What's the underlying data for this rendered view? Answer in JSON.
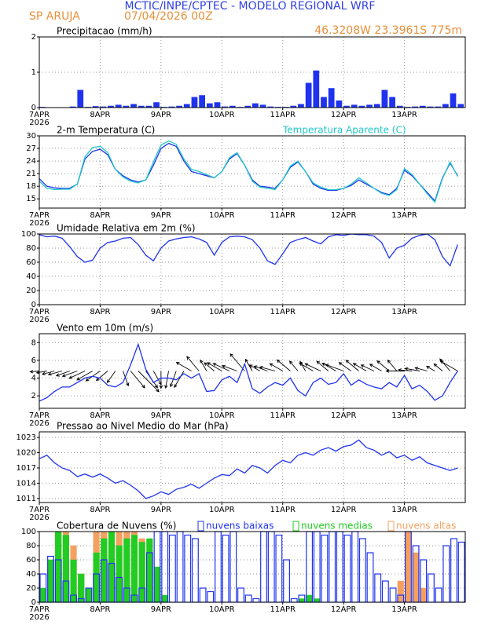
{
  "header": {
    "title": "MCTIC/INPE/CPTEC - MODELO REGIONAL WRF",
    "location": "SP ARUJA",
    "run": "07/04/2026 00Z",
    "coords": "46.3208W 23.3961S 775m"
  },
  "chart_data": [
    {
      "type": "bar",
      "title": "Precipitacao (mm/h)",
      "color": "#1f33ee",
      "grid": true,
      "x": [
        0,
        3,
        6,
        9,
        12,
        15,
        18,
        21,
        24,
        27,
        30,
        33,
        36,
        39,
        42,
        45,
        48,
        51,
        54,
        57,
        60,
        63,
        66,
        69,
        72,
        75,
        78,
        81,
        84,
        87,
        90,
        93,
        96,
        99,
        102,
        105,
        108,
        111,
        114,
        117,
        120,
        123,
        126,
        129,
        132,
        135,
        138,
        141,
        144,
        147,
        150,
        153,
        156,
        159,
        162,
        165
      ],
      "values": [
        0.02,
        0.01,
        0.01,
        0.01,
        0.03,
        0.5,
        0.02,
        0.04,
        0.03,
        0.05,
        0.08,
        0.05,
        0.1,
        0.05,
        0.05,
        0.15,
        0.02,
        0.03,
        0.05,
        0.1,
        0.3,
        0.35,
        0.12,
        0.15,
        0.03,
        0.05,
        0.02,
        0.05,
        0.12,
        0.08,
        0.03,
        0.02,
        0.02,
        0.05,
        0.1,
        0.7,
        1.05,
        0.3,
        0.55,
        0.2,
        0.05,
        0.08,
        0.05,
        0.08,
        0.1,
        0.5,
        0.3,
        0.05,
        0.02,
        0.03,
        0.05,
        0.03,
        0.03,
        0.1,
        0.4,
        0.1
      ],
      "xlim": [
        0,
        168
      ],
      "xticks": [
        {
          "value": 0,
          "label": "7APR"
        },
        {
          "value": 24,
          "label": "8APR"
        },
        {
          "value": 48,
          "label": "9APR"
        },
        {
          "value": 72,
          "label": "10APR"
        },
        {
          "value": 96,
          "label": "11APR"
        },
        {
          "value": 120,
          "label": "12APR"
        },
        {
          "value": 144,
          "label": "13APR"
        }
      ],
      "year_label": "2026",
      "ylim": [
        0,
        2
      ],
      "yticks": [
        0,
        1,
        2
      ]
    },
    {
      "type": "line",
      "grid": true,
      "x": [
        0,
        3,
        6,
        9,
        12,
        15,
        18,
        21,
        24,
        27,
        30,
        33,
        36,
        39,
        42,
        45,
        48,
        51,
        54,
        57,
        60,
        63,
        66,
        69,
        72,
        75,
        78,
        81,
        84,
        87,
        90,
        93,
        96,
        99,
        102,
        105,
        108,
        111,
        114,
        117,
        120,
        123,
        126,
        129,
        132,
        135,
        138,
        141,
        144,
        147,
        150,
        153,
        156,
        159,
        162,
        165
      ],
      "series": [
        {
          "name": "2-m Temperatura (C)",
          "color": "#1f33ee",
          "values": [
            19.8,
            18,
            17.6,
            17.5,
            17.5,
            18.5,
            24.5,
            26.3,
            26.8,
            25.5,
            22,
            20.5,
            19.5,
            19,
            19.5,
            23,
            27,
            28.2,
            27.5,
            24,
            21.5,
            21,
            20.5,
            20,
            21.5,
            24.5,
            25.8,
            23,
            19.5,
            18,
            17.8,
            17.5,
            19.5,
            22.5,
            23.8,
            21.5,
            18.5,
            17.5,
            17,
            17,
            17.5,
            18.2,
            19.5,
            18.5,
            17.5,
            16.5,
            16,
            17.5,
            21.8,
            20.5,
            18.5,
            16.5,
            14.5,
            20,
            23.5,
            20.5
          ]
        },
        {
          "name": "Temperatura Aparente (C)",
          "color": "#22c8c8",
          "values": [
            19.2,
            17.5,
            17.2,
            17.3,
            17.3,
            18.5,
            25,
            27.2,
            27.5,
            26,
            22,
            20.2,
            19.2,
            18.8,
            19.5,
            23.8,
            27.8,
            28.8,
            28,
            24.5,
            22,
            21.5,
            20.8,
            20,
            21.5,
            24.8,
            26,
            23,
            19.2,
            17.8,
            17.5,
            17.2,
            19.5,
            22.8,
            24,
            21.5,
            18.8,
            17.8,
            17.2,
            17.2,
            17.5,
            18.5,
            20,
            18.8,
            17.5,
            16.3,
            15.8,
            17.2,
            22.2,
            20.8,
            18.5,
            16.2,
            14.2,
            19.8,
            23.8,
            20.3
          ]
        }
      ],
      "xlim": [
        0,
        168
      ],
      "xticks": [
        {
          "value": 0,
          "label": "7APR"
        },
        {
          "value": 24,
          "label": "8APR"
        },
        {
          "value": 48,
          "label": "9APR"
        },
        {
          "value": 72,
          "label": "10APR"
        },
        {
          "value": 96,
          "label": "11APR"
        },
        {
          "value": 120,
          "label": "12APR"
        },
        {
          "value": 144,
          "label": "13APR"
        }
      ],
      "year_label": "2026",
      "ylim": [
        12.8,
        30
      ],
      "yticks": [
        15,
        18,
        21,
        24,
        27,
        30
      ]
    },
    {
      "type": "line",
      "title": "Umidade Relativa em 2m (%)",
      "grid": true,
      "x": [
        0,
        3,
        6,
        9,
        12,
        15,
        18,
        21,
        24,
        27,
        30,
        33,
        36,
        39,
        42,
        45,
        48,
        51,
        54,
        57,
        60,
        63,
        66,
        69,
        72,
        75,
        78,
        81,
        84,
        87,
        90,
        93,
        96,
        99,
        102,
        105,
        108,
        111,
        114,
        117,
        120,
        123,
        126,
        129,
        132,
        135,
        138,
        141,
        144,
        147,
        150,
        153,
        156,
        159,
        162,
        165
      ],
      "series": [
        {
          "color": "#1f33ee",
          "values": [
            99,
            96,
            97,
            94,
            82,
            68,
            60,
            63,
            80,
            88,
            90,
            94,
            95,
            85,
            70,
            62,
            80,
            90,
            93,
            95,
            96,
            93,
            88,
            70,
            88,
            96,
            97,
            96,
            92,
            80,
            62,
            57,
            72,
            88,
            92,
            95,
            90,
            86,
            96,
            99,
            98,
            100,
            99,
            99,
            97,
            88,
            66,
            80,
            84,
            94,
            98,
            100,
            92,
            68,
            55,
            85
          ]
        }
      ],
      "xlim": [
        0,
        168
      ],
      "xticks": [
        {
          "value": 0,
          "label": "7APR"
        },
        {
          "value": 24,
          "label": "8APR"
        },
        {
          "value": 48,
          "label": "9APR"
        },
        {
          "value": 72,
          "label": "10APR"
        },
        {
          "value": 96,
          "label": "11APR"
        },
        {
          "value": 120,
          "label": "12APR"
        },
        {
          "value": 144,
          "label": "13APR"
        }
      ],
      "year_label": "2026",
      "ylim": [
        0,
        100
      ],
      "yticks": [
        0,
        20,
        40,
        60,
        80,
        100
      ]
    },
    {
      "type": "line",
      "title": "Vento em 10m (m/s)",
      "grid": true,
      "x": [
        0,
        3,
        6,
        9,
        12,
        15,
        18,
        21,
        24,
        27,
        30,
        33,
        36,
        39,
        42,
        45,
        48,
        51,
        54,
        57,
        60,
        63,
        66,
        69,
        72,
        75,
        78,
        81,
        84,
        87,
        90,
        93,
        96,
        99,
        102,
        105,
        108,
        111,
        114,
        117,
        120,
        123,
        126,
        129,
        132,
        135,
        138,
        141,
        144,
        147,
        150,
        153,
        156,
        159,
        162,
        165
      ],
      "series": [
        {
          "color": "#1f33ee",
          "values": [
            1.4,
            1.8,
            2.5,
            3,
            3,
            3.5,
            4,
            4.2,
            4,
            3.2,
            3,
            3.5,
            5.5,
            7.8,
            5,
            3.5,
            4,
            4,
            3.8,
            4.5,
            4,
            4.5,
            2.5,
            2.6,
            3.8,
            4.2,
            3.5,
            5.6,
            2.8,
            2.3,
            3,
            3.5,
            3.2,
            4,
            2.6,
            2,
            3.5,
            4,
            3.3,
            3.5,
            4.5,
            3.2,
            3.8,
            3.3,
            3,
            2.8,
            3.5,
            3,
            4.3,
            2.8,
            3.2,
            2.5,
            1.5,
            2,
            3.5,
            4.8
          ]
        }
      ],
      "directions": [
        265,
        260,
        255,
        255,
        250,
        250,
        245,
        240,
        235,
        230,
        215,
        160,
        140,
        135,
        145,
        150,
        180,
        190,
        200,
        210,
        300,
        320,
        330,
        310,
        300,
        295,
        290,
        320,
        330,
        300,
        290,
        285,
        300,
        310,
        320,
        330,
        300,
        295,
        310,
        300,
        290,
        305,
        310,
        300,
        295,
        300,
        310,
        320,
        270,
        275,
        280,
        285,
        300,
        310,
        320,
        300
      ],
      "xlim": [
        0,
        168
      ],
      "xticks": [
        {
          "value": 0,
          "label": "7APR"
        },
        {
          "value": 24,
          "label": "8APR"
        },
        {
          "value": 48,
          "label": "9APR"
        },
        {
          "value": 72,
          "label": "10APR"
        },
        {
          "value": 96,
          "label": "11APR"
        },
        {
          "value": 120,
          "label": "12APR"
        },
        {
          "value": 144,
          "label": "13APR"
        }
      ],
      "year_label": "2026",
      "ylim": [
        0.6,
        9
      ],
      "yticks": [
        2,
        4,
        6,
        8
      ]
    },
    {
      "type": "line",
      "title": "Pressao ao Nivel Medio do Mar (hPa)",
      "grid": true,
      "x": [
        0,
        3,
        6,
        9,
        12,
        15,
        18,
        21,
        24,
        27,
        30,
        33,
        36,
        39,
        42,
        45,
        48,
        51,
        54,
        57,
        60,
        63,
        66,
        69,
        72,
        75,
        78,
        81,
        84,
        87,
        90,
        93,
        96,
        99,
        102,
        105,
        108,
        111,
        114,
        117,
        120,
        123,
        126,
        129,
        132,
        135,
        138,
        141,
        144,
        147,
        150,
        153,
        156,
        159,
        162,
        165
      ],
      "series": [
        {
          "color": "#1f33ee",
          "values": [
            1018.8,
            1019.5,
            1018,
            1017,
            1016.5,
            1015.3,
            1015.8,
            1015.2,
            1015.8,
            1015,
            1014,
            1014.5,
            1013.6,
            1012.5,
            1011,
            1011.5,
            1012.3,
            1011.8,
            1012.8,
            1013.2,
            1013.8,
            1013,
            1014,
            1015,
            1015.7,
            1015.5,
            1016.8,
            1016,
            1017.5,
            1017,
            1016,
            1017.5,
            1018.5,
            1018,
            1019.5,
            1020,
            1019.5,
            1020.5,
            1021,
            1020.3,
            1021.2,
            1021.5,
            1022.5,
            1021,
            1020.5,
            1019.5,
            1020.2,
            1019,
            1019.5,
            1018.5,
            1019.2,
            1018,
            1017.5,
            1017,
            1016.5,
            1017
          ]
        }
      ],
      "xlim": [
        0,
        168
      ],
      "xticks": [
        {
          "value": 0,
          "label": "7APR"
        },
        {
          "value": 24,
          "label": "8APR"
        },
        {
          "value": 48,
          "label": "9APR"
        },
        {
          "value": 72,
          "label": "10APR"
        },
        {
          "value": 96,
          "label": "11APR"
        },
        {
          "value": 120,
          "label": "12APR"
        },
        {
          "value": 144,
          "label": "13APR"
        }
      ],
      "year_label": "2026",
      "ylim": [
        1010.2,
        1024.1
      ],
      "yticks": [
        1011,
        1014,
        1017,
        1020,
        1023
      ]
    },
    {
      "type": "bar",
      "title": "Cobertura de Nuvens (%)",
      "grid": true,
      "x": [
        0,
        3,
        6,
        9,
        12,
        15,
        18,
        21,
        24,
        27,
        30,
        33,
        36,
        39,
        42,
        45,
        48,
        51,
        54,
        57,
        60,
        63,
        66,
        69,
        72,
        75,
        78,
        81,
        84,
        87,
        90,
        93,
        96,
        99,
        102,
        105,
        108,
        111,
        114,
        117,
        120,
        123,
        126,
        129,
        132,
        135,
        138,
        141,
        144,
        147,
        150,
        153,
        156,
        159,
        162,
        165
      ],
      "series": [
        {
          "name": "nuvens baixas",
          "color": "#1f33ee",
          "outline": true,
          "values": [
            40,
            65,
            60,
            30,
            10,
            5,
            20,
            40,
            60,
            55,
            35,
            20,
            10,
            20,
            70,
            100,
            100,
            95,
            100,
            95,
            90,
            20,
            15,
            100,
            95,
            100,
            20,
            10,
            5,
            100,
            100,
            95,
            60,
            5,
            10,
            100,
            100,
            95,
            100,
            100,
            95,
            100,
            90,
            70,
            40,
            30,
            20,
            10,
            100,
            80,
            60,
            40,
            20,
            80,
            90,
            85
          ]
        },
        {
          "name": "nuvens medias",
          "color": "#22cc22",
          "outline": false,
          "values": [
            20,
            60,
            100,
            95,
            60,
            40,
            20,
            70,
            90,
            100,
            80,
            90,
            95,
            85,
            90,
            50,
            10,
            0,
            0,
            0,
            0,
            0,
            0,
            0,
            0,
            0,
            0,
            0,
            0,
            0,
            0,
            0,
            0,
            0,
            5,
            10,
            5,
            0,
            0,
            0,
            0,
            0,
            0,
            0,
            0,
            0,
            0,
            0,
            0,
            0,
            0,
            0,
            0,
            0,
            0,
            0
          ]
        },
        {
          "name": "nuvens altas",
          "color": "#f4a060",
          "outline": false,
          "values": [
            0,
            30,
            100,
            100,
            80,
            40,
            10,
            100,
            100,
            100,
            100,
            100,
            100,
            90,
            60,
            10,
            0,
            0,
            0,
            0,
            0,
            0,
            0,
            0,
            0,
            0,
            0,
            0,
            0,
            0,
            0,
            0,
            0,
            0,
            0,
            0,
            0,
            0,
            0,
            0,
            0,
            0,
            0,
            0,
            0,
            0,
            0,
            30,
            100,
            70,
            20,
            0,
            0,
            0,
            0,
            0
          ]
        }
      ],
      "xlim": [
        0,
        168
      ],
      "xticks": [
        {
          "value": 0,
          "label": "7APR"
        },
        {
          "value": 24,
          "label": "8APR"
        },
        {
          "value": 48,
          "label": "9APR"
        },
        {
          "value": 72,
          "label": "10APR"
        },
        {
          "value": 96,
          "label": "11APR"
        },
        {
          "value": 120,
          "label": "12APR"
        },
        {
          "value": 144,
          "label": "13APR"
        }
      ],
      "year_label": "2026",
      "ylim": [
        0,
        100
      ],
      "yticks": [
        0,
        20,
        40,
        60,
        80,
        100
      ]
    }
  ]
}
